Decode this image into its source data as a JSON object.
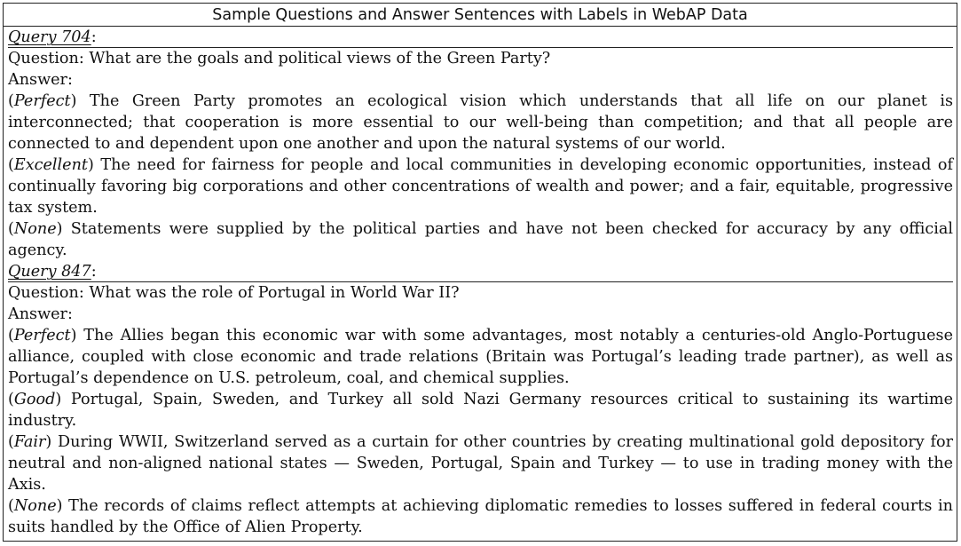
{
  "table_title": "Sample Questions and Answer Sentences with Labels in WebAP Data",
  "queries": [
    {
      "label": "Query 704",
      "suffix": ":",
      "question": "Question: What are the goals and political views of the Green Party?",
      "answer_heading": "Answer:",
      "answers": [
        {
          "label": "Perfect",
          "text": " The Green Party promotes an ecological vision which understands that all life on our planet is interconnected; that cooperation is more essential to our well-being than competition; and that all people are connected to and dependent upon one another and upon the natural systems of our world."
        },
        {
          "label": "Excellent",
          "text": " The need for fairness for people and local communities in developing economic opportunities, instead of continually favoring big corporations and other concentrations of wealth and power; and a fair, equitable, progressive tax system."
        },
        {
          "label": "None",
          "text": " Statements were supplied by the political parties and have not been checked for accuracy by any official agency."
        }
      ]
    },
    {
      "label": "Query 847",
      "suffix": ":",
      "question": "Question: What was the role of Portugal in World War II?",
      "answer_heading": "Answer:",
      "answers": [
        {
          "label": "Perfect",
          "text": " The Allies began this economic war with some advantages, most notably a centuries-old Anglo-Portuguese alliance, coupled with close economic and trade relations (Britain was Portugal’s leading trade partner), as well as Portugal’s dependence on U.S. petroleum, coal, and chemical supplies."
        },
        {
          "label": "Good",
          "text": " Portugal, Spain, Sweden, and Turkey all sold Nazi Germany resources critical to sustaining its wartime industry."
        },
        {
          "label": "Fair",
          "text": " During WWII, Switzerland served as a curtain for other countries by creating multinational gold depository for neutral and non-aligned national states — Sweden, Portugal, Spain and Turkey — to use in trading money with the Axis."
        },
        {
          "label": "None",
          "text": " The records of claims reflect attempts at achieving diplomatic remedies to losses suffered in federal courts in suits handled by the Office of Alien Property."
        }
      ]
    }
  ]
}
